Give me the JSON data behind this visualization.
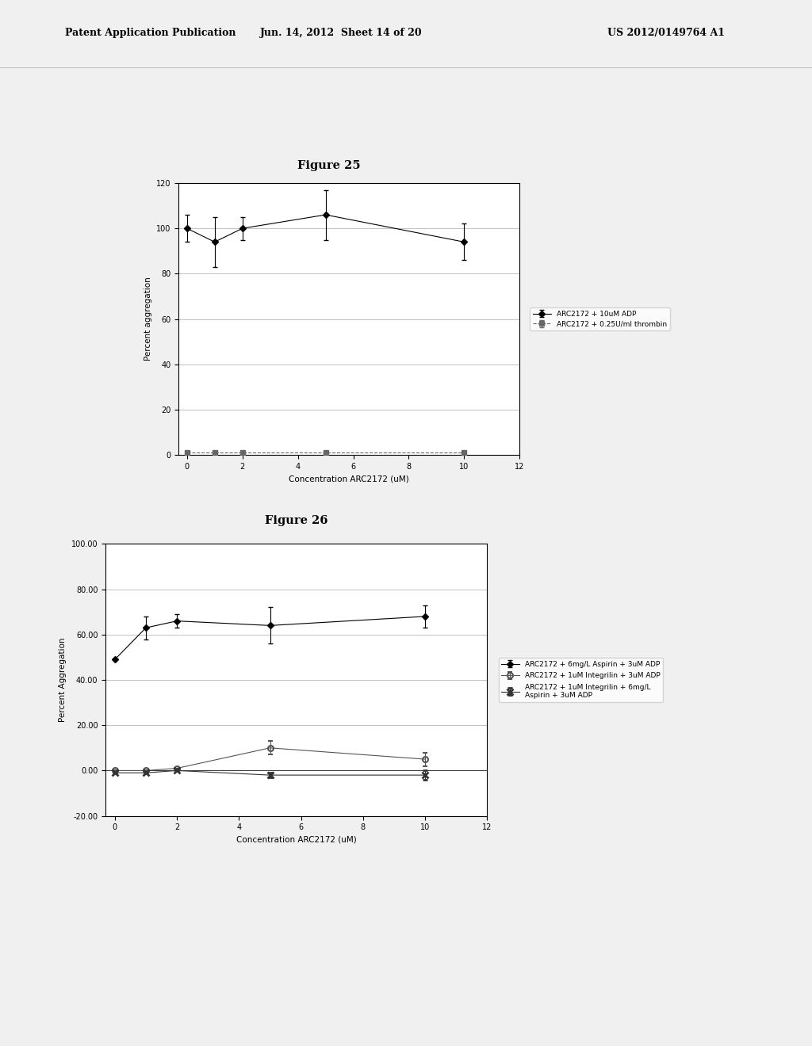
{
  "fig25": {
    "title": "Figure 25",
    "xlabel": "Concentration ARC2172 (uM)",
    "ylabel": "Percent aggregation",
    "xlim": [
      -0.3,
      12
    ],
    "ylim": [
      0,
      120
    ],
    "yticks": [
      0,
      20,
      40,
      60,
      80,
      100,
      120
    ],
    "xticks": [
      0,
      2,
      4,
      6,
      8,
      10,
      12
    ],
    "series1": {
      "label": "ARC2172 + 10uM ADP",
      "x": [
        0,
        1,
        2,
        5,
        10
      ],
      "y": [
        100,
        94,
        100,
        106,
        94
      ],
      "yerr": [
        6,
        11,
        5,
        11,
        8
      ],
      "marker": "D",
      "markersize": 4,
      "linestyle": "-",
      "color": "#000000"
    },
    "series2": {
      "label": "ARC2172 + 0.25U/ml thrombin",
      "x": [
        0,
        1,
        2,
        5,
        10
      ],
      "y": [
        1,
        1,
        1,
        1,
        1
      ],
      "yerr": [
        0,
        0,
        0,
        0,
        0
      ],
      "marker": "s",
      "markersize": 4,
      "linestyle": "--",
      "color": "#666666"
    }
  },
  "fig26": {
    "title": "Figure 26",
    "xlabel": "Concentration ARC2172 (uM)",
    "ylabel": "Percent Aggregation",
    "xlim": [
      -0.3,
      12
    ],
    "ylim": [
      -20,
      100
    ],
    "yticks": [
      -20.0,
      0.0,
      20.0,
      40.0,
      60.0,
      80.0,
      100.0
    ],
    "xticks": [
      0,
      2,
      4,
      6,
      8,
      10,
      12
    ],
    "series1": {
      "label": "ARC2172 + 6mg/L Aspirin + 3uM ADP",
      "x": [
        0,
        1,
        2,
        5,
        10
      ],
      "y": [
        49,
        63,
        66,
        64,
        68
      ],
      "yerr": [
        0,
        5,
        3,
        8,
        5
      ],
      "marker": "D",
      "markersize": 4,
      "linestyle": "-",
      "color": "#000000"
    },
    "series2": {
      "label": "ARC2172 + 1uM Integrilin + 3uM ADP",
      "x": [
        0,
        1,
        2,
        5,
        10
      ],
      "y": [
        0,
        0,
        1,
        10,
        5
      ],
      "yerr": [
        0,
        0,
        0,
        3,
        3
      ],
      "marker": "o",
      "markersize": 5,
      "linestyle": "-",
      "color": "#555555"
    },
    "series3": {
      "label": "ARC2172 + 1uM Integrilin + 6mg/L\nAspirin + 3uM ADP",
      "x": [
        0,
        1,
        2,
        5,
        10
      ],
      "y": [
        -1,
        -1,
        0,
        -2,
        -2
      ],
      "yerr": [
        0,
        0,
        0,
        1,
        2
      ],
      "marker": "x",
      "markersize": 6,
      "linestyle": "-",
      "color": "#333333"
    }
  },
  "header_line1": "Patent Application Publication",
  "header_line2": "Jun. 14, 2012  Sheet 14 of 20",
  "header_line3": "US 2012/0149764 A1",
  "background_color": "#f0f0f0",
  "text_color": "#000000"
}
